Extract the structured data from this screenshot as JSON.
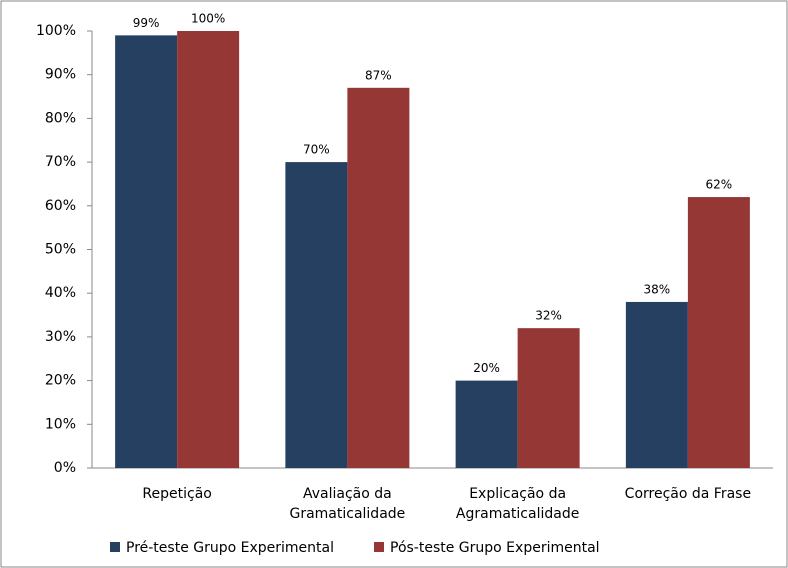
{
  "chart_data": {
    "type": "bar",
    "categories": [
      "Repetição",
      "Avaliação da\nGramaticalidade",
      "Explicação da\nAgramaticalidade",
      "Correção da Frase"
    ],
    "series": [
      {
        "name": "Pré-teste Grupo Experimental",
        "color": "#254061",
        "values": [
          99,
          70,
          20,
          38
        ],
        "value_labels": [
          "99%",
          "70%",
          "20%",
          "38%"
        ]
      },
      {
        "name": "Pós-teste Grupo Experimental",
        "color": "#953735",
        "values": [
          100,
          87,
          32,
          62
        ],
        "value_labels": [
          "100%",
          "87%",
          "32%",
          "62%"
        ]
      }
    ],
    "ylim": [
      0,
      100
    ],
    "yticks": [
      {
        "value": 0,
        "label": "0%"
      },
      {
        "value": 10,
        "label": "10%"
      },
      {
        "value": 20,
        "label": "20%"
      },
      {
        "value": 30,
        "label": "30%"
      },
      {
        "value": 40,
        "label": "40%"
      },
      {
        "value": 50,
        "label": "50%"
      },
      {
        "value": 60,
        "label": "60%"
      },
      {
        "value": 70,
        "label": "70%"
      },
      {
        "value": 80,
        "label": "80%"
      },
      {
        "value": 90,
        "label": "90%"
      },
      {
        "value": 100,
        "label": "100%"
      }
    ],
    "grid": false,
    "legend": "bottom"
  }
}
